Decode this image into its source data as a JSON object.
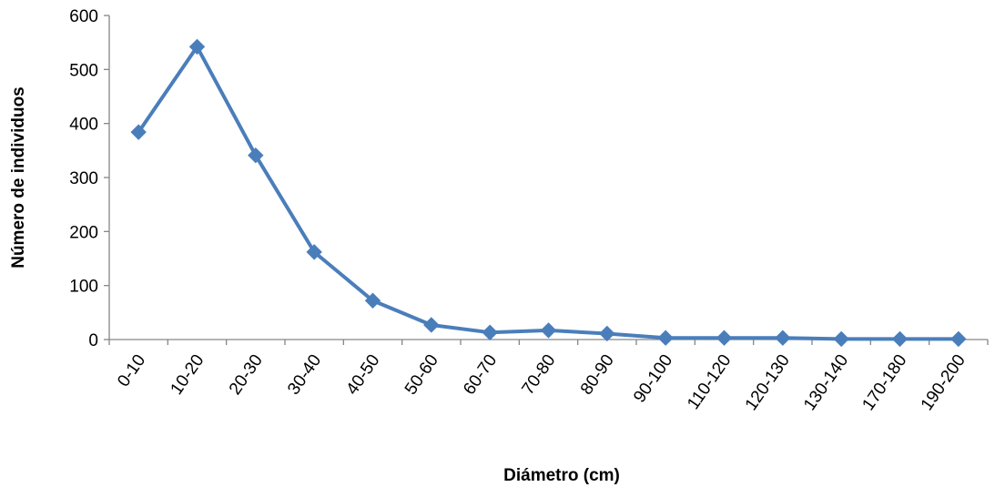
{
  "chart_data": {
    "type": "line",
    "title": "",
    "xlabel": "Diámetro (cm)",
    "ylabel": "Número de individuos",
    "categories": [
      "0-10",
      "10-20",
      "20-30",
      "30-40",
      "40-50",
      "50-60",
      "60-70",
      "70-80",
      "80-90",
      "90-100",
      "110-120",
      "120-130",
      "130-140",
      "170-180",
      "190-200"
    ],
    "series": [
      {
        "values": [
          384,
          542,
          341,
          162,
          72,
          27,
          13,
          17,
          11,
          3,
          3,
          3,
          1,
          1,
          1
        ]
      }
    ],
    "ylim": [
      0,
      600
    ],
    "yticks": [
      "0",
      "100",
      "200",
      "300",
      "400",
      "500",
      "600"
    ],
    "grid": false,
    "legend": "none",
    "marker": "diamond",
    "colors": {
      "series": "#4A7EBB",
      "axis": "#868686"
    }
  }
}
